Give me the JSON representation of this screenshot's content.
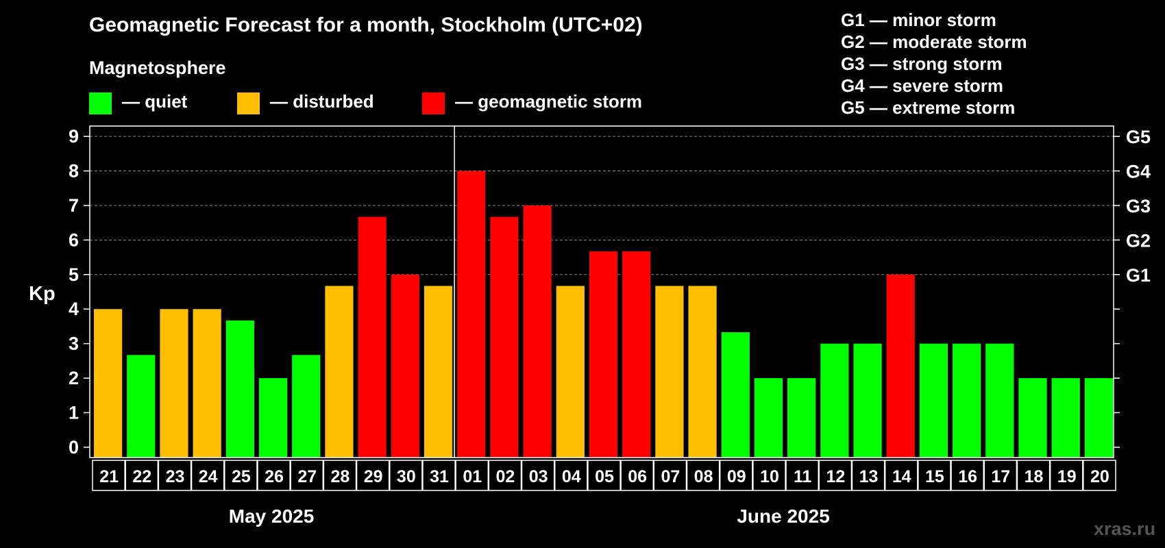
{
  "title": "Geomagnetic Forecast for a month, Stockholm (UTC+02)",
  "legend_heading": "Magnetosphere",
  "legend": [
    {
      "label": "— quiet",
      "color": "#00ff00"
    },
    {
      "label": "— disturbed",
      "color": "#ffbf00"
    },
    {
      "label": "— geomagnetic storm",
      "color": "#ff0000"
    }
  ],
  "g_scale": [
    "G1 — minor storm",
    "G2 — moderate storm",
    "G3 — strong storm",
    "G4 — severe storm",
    "G5 — extreme storm"
  ],
  "watermark": "xras.ru",
  "chart_data": {
    "type": "bar",
    "ylabel": "Kp",
    "ylim": [
      -0.3,
      9.3
    ],
    "yticks": [
      0,
      1,
      2,
      3,
      4,
      5,
      6,
      7,
      8,
      9
    ],
    "grid": "dashed horizontal at 5-9",
    "right_axis": [
      {
        "kp": 5,
        "label": "G1"
      },
      {
        "kp": 6,
        "label": "G2"
      },
      {
        "kp": 7,
        "label": "G3"
      },
      {
        "kp": 8,
        "label": "G4"
      },
      {
        "kp": 9,
        "label": "G5"
      }
    ],
    "categories": [
      "21",
      "22",
      "23",
      "24",
      "25",
      "26",
      "27",
      "28",
      "29",
      "30",
      "31",
      "01",
      "02",
      "03",
      "04",
      "05",
      "06",
      "07",
      "08",
      "09",
      "10",
      "11",
      "12",
      "13",
      "14",
      "15",
      "16",
      "17",
      "18",
      "19",
      "20"
    ],
    "values": [
      4,
      2.67,
      4,
      4,
      3.67,
      2,
      2.67,
      4.67,
      6.67,
      5,
      4.67,
      8,
      6.67,
      7,
      4.67,
      5.67,
      5.67,
      4.67,
      4.67,
      3.33,
      2,
      2,
      3,
      3,
      5,
      3,
      3,
      3,
      2,
      2,
      2
    ],
    "status": [
      "disturbed",
      "quiet",
      "disturbed",
      "disturbed",
      "quiet",
      "quiet",
      "quiet",
      "disturbed",
      "storm",
      "storm",
      "disturbed",
      "storm",
      "storm",
      "storm",
      "disturbed",
      "storm",
      "storm",
      "disturbed",
      "disturbed",
      "quiet",
      "quiet",
      "quiet",
      "quiet",
      "quiet",
      "storm",
      "quiet",
      "quiet",
      "quiet",
      "quiet",
      "quiet",
      "quiet"
    ],
    "status_colors": {
      "quiet": "#00ff00",
      "disturbed": "#ffbf00",
      "storm": "#ff0000"
    },
    "months": [
      {
        "label": "May 2025",
        "first_index": 0,
        "last_index": 10
      },
      {
        "label": "June 2025",
        "first_index": 11,
        "last_index": 30
      }
    ]
  }
}
